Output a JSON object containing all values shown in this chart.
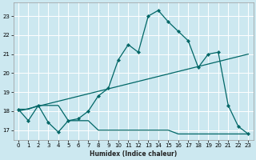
{
  "xlabel": "Humidex (Indice chaleur)",
  "bg_color": "#cce8f0",
  "line_color": "#006666",
  "grid_color": "#ffffff",
  "xlim": [
    -0.5,
    23.5
  ],
  "ylim": [
    16.5,
    23.7
  ],
  "line1_x": [
    0,
    1,
    2,
    3,
    4,
    5,
    6,
    7,
    8,
    9,
    10,
    11,
    12,
    13,
    14,
    15,
    16,
    17,
    18,
    19,
    20,
    21,
    22,
    23
  ],
  "line1_y": [
    18.1,
    17.5,
    18.3,
    17.4,
    16.9,
    17.5,
    17.6,
    18.0,
    18.8,
    19.2,
    20.7,
    21.5,
    21.1,
    23.0,
    23.3,
    22.7,
    22.2,
    21.7,
    20.3,
    21.0,
    21.1,
    18.3,
    17.2,
    16.8
  ],
  "line2_x": [
    0,
    23
  ],
  "line2_y": [
    18.0,
    21.0
  ],
  "line3_x": [
    0,
    1,
    2,
    3,
    4,
    5,
    6,
    7,
    8,
    9,
    10,
    11,
    12,
    13,
    14,
    15,
    16,
    17,
    18,
    19,
    20,
    21,
    22,
    23
  ],
  "line3_y": [
    18.1,
    18.1,
    18.3,
    18.3,
    18.3,
    17.5,
    17.5,
    17.5,
    17.0,
    17.0,
    17.0,
    17.0,
    17.0,
    17.0,
    17.0,
    17.0,
    16.8,
    16.8,
    16.8,
    16.8,
    16.8,
    16.8,
    16.8,
    16.8
  ],
  "xticks": [
    0,
    1,
    2,
    3,
    4,
    5,
    6,
    7,
    8,
    9,
    10,
    11,
    12,
    13,
    14,
    15,
    16,
    17,
    18,
    19,
    20,
    21,
    22,
    23
  ],
  "yticks": [
    17,
    18,
    19,
    20,
    21,
    22,
    23
  ]
}
